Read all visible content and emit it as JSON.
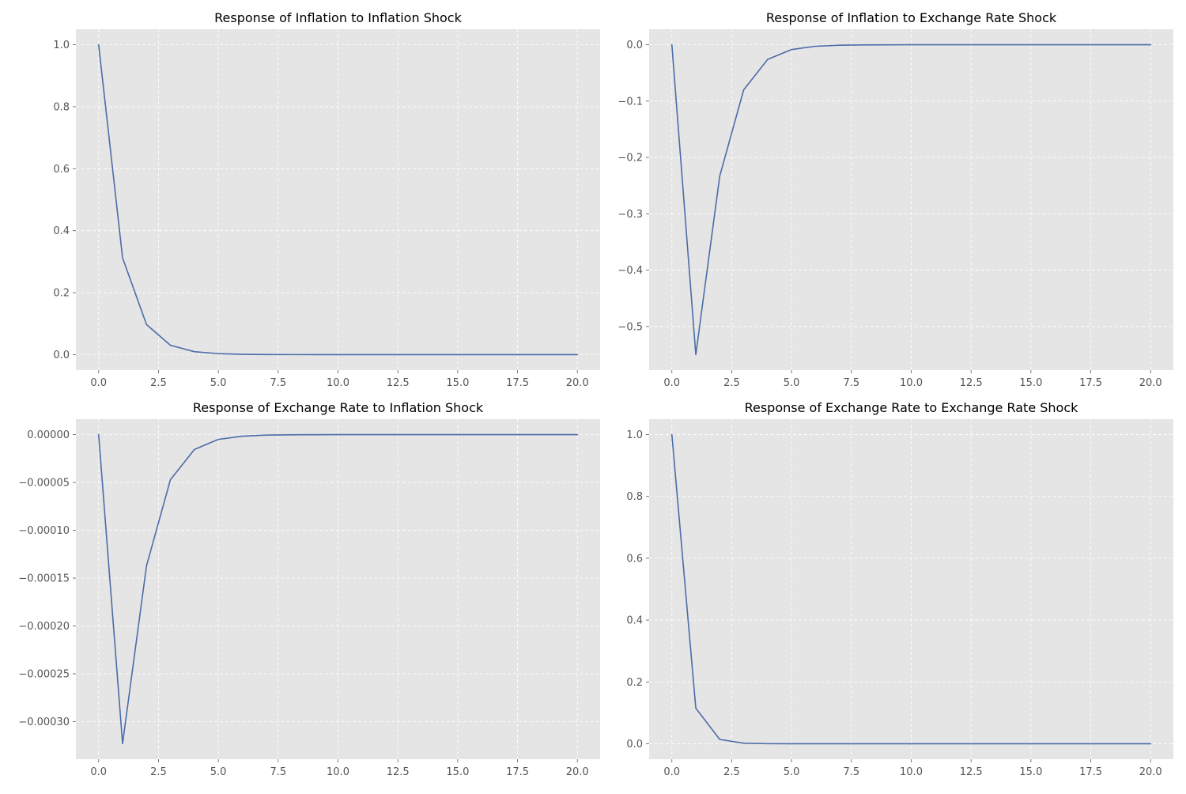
{
  "chart_data": [
    {
      "type": "line",
      "title": "Response of Inflation to Inflation Shock",
      "xlabel": "",
      "ylabel": "",
      "xlim": [
        -0.95,
        20.95
      ],
      "ylim": [
        -0.05,
        1.05
      ],
      "x_ticks": [
        0.0,
        2.5,
        5.0,
        7.5,
        10.0,
        12.5,
        15.0,
        17.5,
        20.0
      ],
      "x_tick_labels": [
        "0.0",
        "2.5",
        "5.0",
        "7.5",
        "10.0",
        "12.5",
        "15.0",
        "17.5",
        "20.0"
      ],
      "y_ticks": [
        0.0,
        0.2,
        0.4,
        0.6,
        0.8,
        1.0
      ],
      "y_tick_labels": [
        "0.0",
        "0.2",
        "0.4",
        "0.6",
        "0.8",
        "1.0"
      ],
      "grid": true,
      "x": [
        0,
        1,
        2,
        3,
        4,
        5,
        6,
        7,
        8,
        9,
        10,
        11,
        12,
        13,
        14,
        15,
        16,
        17,
        18,
        19,
        20
      ],
      "series": [
        {
          "color": "#4c6ca8",
          "values": [
            1.0,
            0.312,
            0.097,
            0.03,
            0.0095,
            0.003,
            0.0009,
            0.0003,
            0.0001,
            3e-05,
            1e-05,
            0,
            0,
            0,
            0,
            0,
            0,
            0,
            0,
            0,
            0
          ]
        }
      ]
    },
    {
      "type": "line",
      "title": "Response of Inflation to Exchange Rate Shock",
      "xlabel": "",
      "ylabel": "",
      "xlim": [
        -0.95,
        20.95
      ],
      "ylim": [
        -0.5775,
        0.0275
      ],
      "x_ticks": [
        0.0,
        2.5,
        5.0,
        7.5,
        10.0,
        12.5,
        15.0,
        17.5,
        20.0
      ],
      "x_tick_labels": [
        "0.0",
        "2.5",
        "5.0",
        "7.5",
        "10.0",
        "12.5",
        "15.0",
        "17.5",
        "20.0"
      ],
      "y_ticks": [
        0.0,
        -0.1,
        -0.2,
        -0.3,
        -0.4,
        -0.5
      ],
      "y_tick_labels": [
        "0.0",
        "−0.1",
        "−0.2",
        "−0.3",
        "−0.4",
        "−0.5"
      ],
      "grid": true,
      "x": [
        0,
        1,
        2,
        3,
        4,
        5,
        6,
        7,
        8,
        9,
        10,
        11,
        12,
        13,
        14,
        15,
        16,
        17,
        18,
        19,
        20
      ],
      "series": [
        {
          "color": "#4c6ca8",
          "values": [
            0.0,
            -0.55,
            -0.233,
            -0.08,
            -0.026,
            -0.0085,
            -0.0027,
            -0.0009,
            -0.0003,
            -0.0001,
            -3e-05,
            0,
            0,
            0,
            0,
            0,
            0,
            0,
            0,
            0,
            0
          ]
        }
      ]
    },
    {
      "type": "line",
      "title": "Response of Exchange Rate to Inflation Shock",
      "xlabel": "",
      "ylabel": "",
      "xlim": [
        -0.95,
        20.95
      ],
      "ylim": [
        -0.0003393,
        1.62e-05
      ],
      "x_ticks": [
        0.0,
        2.5,
        5.0,
        7.5,
        10.0,
        12.5,
        15.0,
        17.5,
        20.0
      ],
      "x_tick_labels": [
        "0.0",
        "2.5",
        "5.0",
        "7.5",
        "10.0",
        "12.5",
        "15.0",
        "17.5",
        "20.0"
      ],
      "y_ticks": [
        0.0,
        -5e-05,
        -0.0001,
        -0.00015,
        -0.0002,
        -0.00025,
        -0.0003
      ],
      "y_tick_labels": [
        "0.00000",
        "−0.00005",
        "−0.00010",
        "−0.00015",
        "−0.00020",
        "−0.00025",
        "−0.00030"
      ],
      "grid": true,
      "x": [
        0,
        1,
        2,
        3,
        4,
        5,
        6,
        7,
        8,
        9,
        10,
        11,
        12,
        13,
        14,
        15,
        16,
        17,
        18,
        19,
        20
      ],
      "series": [
        {
          "color": "#4c6ca8",
          "values": [
            0.0,
            -0.000323,
            -0.000137,
            -4.7e-05,
            -1.55e-05,
            -5e-06,
            -1.6e-06,
            -5e-07,
            -1.6e-07,
            -5e-08,
            0,
            0,
            0,
            0,
            0,
            0,
            0,
            0,
            0,
            0,
            0
          ]
        }
      ]
    },
    {
      "type": "line",
      "title": "Response of Exchange Rate to Exchange Rate Shock",
      "xlabel": "",
      "ylabel": "",
      "xlim": [
        -0.95,
        20.95
      ],
      "ylim": [
        -0.05,
        1.05
      ],
      "x_ticks": [
        0.0,
        2.5,
        5.0,
        7.5,
        10.0,
        12.5,
        15.0,
        17.5,
        20.0
      ],
      "x_tick_labels": [
        "0.0",
        "2.5",
        "5.0",
        "7.5",
        "10.0",
        "12.5",
        "15.0",
        "17.5",
        "20.0"
      ],
      "y_ticks": [
        0.0,
        0.2,
        0.4,
        0.6,
        0.8,
        1.0
      ],
      "y_tick_labels": [
        "0.0",
        "0.2",
        "0.4",
        "0.6",
        "0.8",
        "1.0"
      ],
      "grid": true,
      "x": [
        0,
        1,
        2,
        3,
        4,
        5,
        6,
        7,
        8,
        9,
        10,
        11,
        12,
        13,
        14,
        15,
        16,
        17,
        18,
        19,
        20
      ],
      "series": [
        {
          "color": "#4c6ca8",
          "values": [
            1.0,
            0.115,
            0.014,
            0.0017,
            0.0002,
            2e-05,
            0,
            0,
            0,
            0,
            0,
            0,
            0,
            0,
            0,
            0,
            0,
            0,
            0,
            0,
            0
          ]
        }
      ]
    }
  ]
}
